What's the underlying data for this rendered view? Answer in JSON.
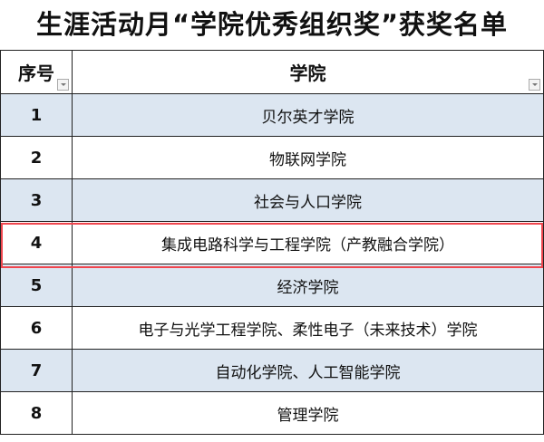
{
  "title": "生涯活动月“学院优秀组织奖”获奖名单",
  "columns": {
    "index": "序号",
    "college": "学院"
  },
  "rows": [
    {
      "index": "1",
      "college": "贝尔英才学院"
    },
    {
      "index": "2",
      "college": "物联网学院"
    },
    {
      "index": "3",
      "college": "社会与人口学院"
    },
    {
      "index": "4",
      "college": "集成电路科学与工程学院（产教融合学院）"
    },
    {
      "index": "5",
      "college": "经济学院"
    },
    {
      "index": "6",
      "college": "电子与光学工程学院、柔性电子（未来技术）学院"
    },
    {
      "index": "7",
      "college": "自动化学院、人工智能学院"
    },
    {
      "index": "8",
      "college": "管理学院"
    }
  ],
  "colors": {
    "alt_row": "#dce6f1",
    "highlight": "#f0464e"
  },
  "highlighted_row": "4"
}
